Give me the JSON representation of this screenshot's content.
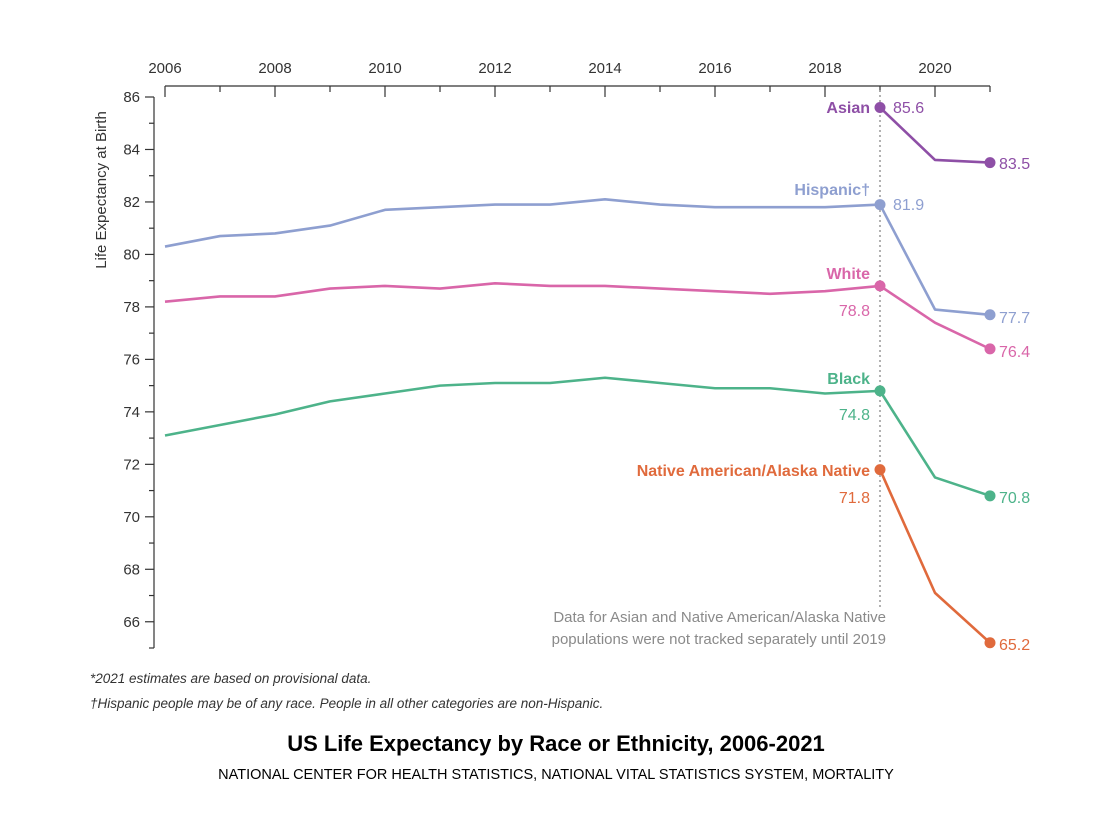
{
  "chart_data": {
    "type": "line",
    "title": "US Life Expectancy by Race or Ethnicity, 2006-2021",
    "subtitle": "NATIONAL CENTER FOR HEALTH STATISTICS, NATIONAL VITAL STATISTICS SYSTEM, MORTALITY",
    "xlabel": "",
    "ylabel": "Life Expectancy at Birth",
    "xlim": [
      2006,
      2021
    ],
    "ylim": [
      65,
      86
    ],
    "x_ticks": [
      2006,
      2008,
      2010,
      2012,
      2014,
      2016,
      2018,
      2020
    ],
    "y_ticks": [
      66,
      68,
      70,
      72,
      74,
      76,
      78,
      80,
      82,
      84,
      86
    ],
    "reference_line_x": 2019,
    "note": [
      "Data for Asian and Native American/Alaska Native",
      "populations were not tracked separately until 2019"
    ],
    "series": [
      {
        "name": "Asian",
        "color": "#8e4fa6",
        "x": [
          2019,
          2020,
          2021
        ],
        "values": [
          85.6,
          83.6,
          83.5
        ],
        "label_2019": "85.6",
        "label_end": "83.5"
      },
      {
        "name": "Hispanic†",
        "color": "#8e9fd0",
        "x": [
          2006,
          2007,
          2008,
          2009,
          2010,
          2011,
          2012,
          2013,
          2014,
          2015,
          2016,
          2017,
          2018,
          2019,
          2020,
          2021
        ],
        "values": [
          80.3,
          80.7,
          80.8,
          81.1,
          81.7,
          81.8,
          81.9,
          81.9,
          82.1,
          81.9,
          81.8,
          81.8,
          81.8,
          81.9,
          77.9,
          77.7
        ],
        "label_2019": "81.9",
        "label_end": "77.7"
      },
      {
        "name": "White",
        "color": "#d966a9",
        "x": [
          2006,
          2007,
          2008,
          2009,
          2010,
          2011,
          2012,
          2013,
          2014,
          2015,
          2016,
          2017,
          2018,
          2019,
          2020,
          2021
        ],
        "values": [
          78.2,
          78.4,
          78.4,
          78.7,
          78.8,
          78.7,
          78.9,
          78.8,
          78.8,
          78.7,
          78.6,
          78.5,
          78.6,
          78.8,
          77.4,
          76.4
        ],
        "label_2019": "78.8",
        "label_end": "76.4"
      },
      {
        "name": "Black",
        "color": "#4db38a",
        "x": [
          2006,
          2007,
          2008,
          2009,
          2010,
          2011,
          2012,
          2013,
          2014,
          2015,
          2016,
          2017,
          2018,
          2019,
          2020,
          2021
        ],
        "values": [
          73.1,
          73.5,
          73.9,
          74.4,
          74.7,
          75.0,
          75.1,
          75.1,
          75.3,
          75.1,
          74.9,
          74.9,
          74.7,
          74.8,
          71.5,
          70.8
        ],
        "label_2019": "74.8",
        "label_end": "70.8"
      },
      {
        "name": "Native American/Alaska Native",
        "color": "#e06a3c",
        "x": [
          2019,
          2020,
          2021
        ],
        "values": [
          71.8,
          67.1,
          65.2
        ],
        "label_2019": "71.8",
        "label_end": "65.2"
      }
    ]
  },
  "footnotes": {
    "provisional": "*2021 estimates are based on provisional data.",
    "hispanic": "†Hispanic people may be of any race. People in all other categories are non-Hispanic."
  }
}
